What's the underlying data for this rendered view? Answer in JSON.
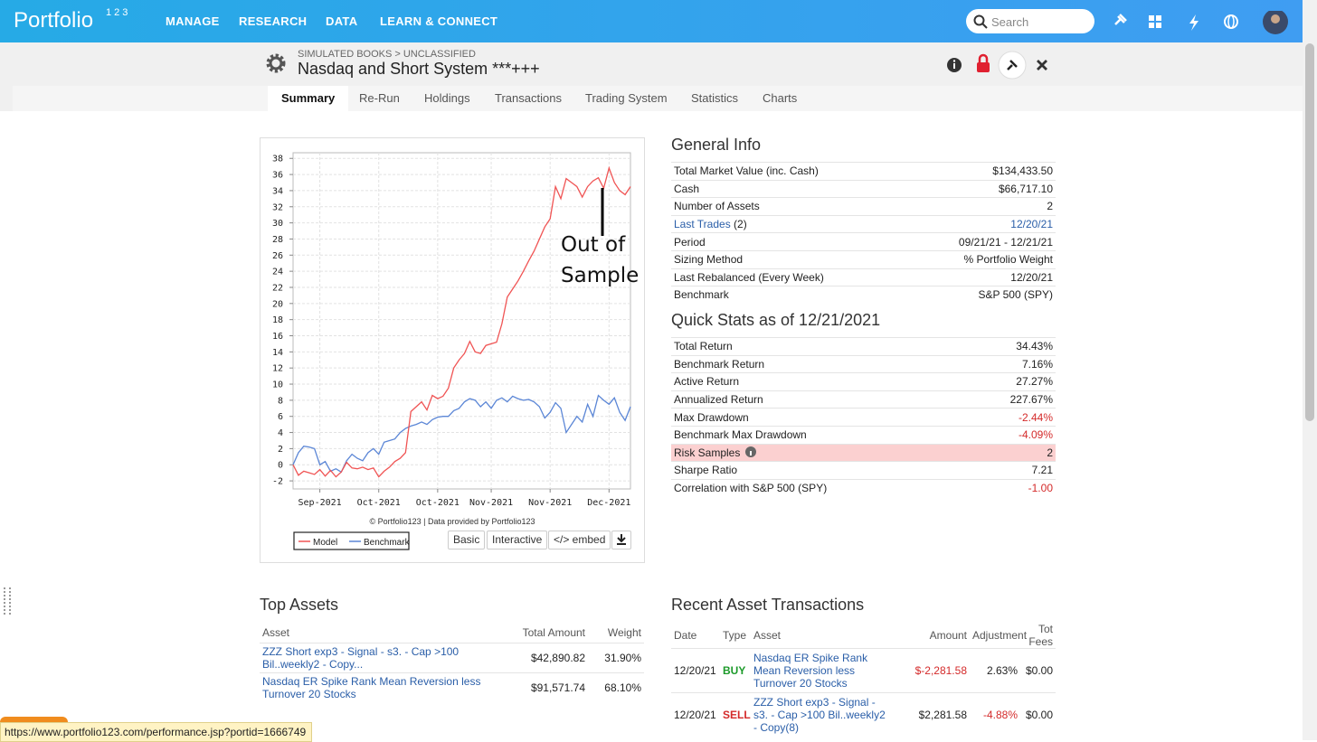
{
  "nav": {
    "logo": "Portfolio",
    "logo_mark": "123",
    "menu": [
      "MANAGE",
      "RESEARCH",
      "DATA",
      "LEARN & CONNECT"
    ],
    "search_placeholder": "Search"
  },
  "header": {
    "breadcrumb": "SIMULATED BOOKS > UNCLASSIFIED",
    "title": "Nasdaq and Short System ***+++"
  },
  "tabs": [
    "Summary",
    "Re-Run",
    "Holdings",
    "Transactions",
    "Trading System",
    "Statistics",
    "Charts"
  ],
  "chart_data": {
    "type": "line",
    "categories": [
      null,
      null,
      null,
      null,
      null,
      "Sep-2021",
      null,
      null,
      null,
      null,
      null,
      null,
      null,
      null,
      null,
      null,
      "Oct-2021",
      null,
      null,
      null,
      null,
      null,
      null,
      null,
      null,
      null,
      null,
      "Oct-2021",
      null,
      null,
      null,
      null,
      null,
      null,
      null,
      null,
      null,
      "Nov-2021",
      null,
      null,
      null,
      null,
      null,
      null,
      null,
      null,
      null,
      null,
      "Nov-2021",
      null,
      null,
      null,
      null,
      null,
      null,
      null,
      null,
      null,
      null,
      "Dec-2021",
      null,
      null,
      null,
      null
    ],
    "series": [
      {
        "name": "Model",
        "color": "#f05454",
        "values": [
          0,
          -1.3,
          -0.8,
          -1.0,
          -1.2,
          -0.6,
          -1.4,
          -0.7,
          -1.5,
          -0.9,
          0.3,
          -0.4,
          -0.5,
          -0.3,
          -0.6,
          -0.4,
          -1.5,
          -0.8,
          -0.3,
          0.4,
          0.8,
          1.5,
          6.6,
          7.2,
          7.8,
          6.8,
          8.6,
          8.2,
          8.5,
          9.5,
          12.0,
          13.0,
          13.8,
          15.3,
          14.0,
          13.8,
          14.8,
          15.0,
          15.2,
          17.5,
          20.8,
          21.8,
          22.8,
          24.0,
          25.3,
          26.5,
          28.0,
          29.5,
          30.5,
          34.5,
          33.0,
          35.5,
          35.0,
          34.5,
          33.2,
          34.5,
          35.2,
          35.6,
          34.3,
          36.8,
          35.0,
          34.0,
          33.5,
          34.5
        ]
      },
      {
        "name": "Benchmark",
        "color": "#5b86d6",
        "values": [
          0,
          1.5,
          2.3,
          2.2,
          2.0,
          0.0,
          0.4,
          -0.8,
          -0.5,
          -0.9,
          0.5,
          1.3,
          0.8,
          0.5,
          1.5,
          2.0,
          1.3,
          2.8,
          3.0,
          3.2,
          4.0,
          4.5,
          4.8,
          5.0,
          5.3,
          5.0,
          5.6,
          5.9,
          6.0,
          6.0,
          6.7,
          7.0,
          7.8,
          8.2,
          8.0,
          7.2,
          7.8,
          7.0,
          8.0,
          8.3,
          7.8,
          8.5,
          8.2,
          8.0,
          8.1,
          7.8,
          7.2,
          5.8,
          6.5,
          7.7,
          7.0,
          4.0,
          5.0,
          6.0,
          5.3,
          7.5,
          6.0,
          8.6,
          8.0,
          7.5,
          8.3,
          6.5,
          5.5,
          7.2
        ]
      }
    ],
    "ylim": [
      -3,
      38.7
    ],
    "yticks": [
      -2,
      0,
      2,
      4,
      6,
      8,
      10,
      12,
      14,
      16,
      18,
      20,
      22,
      24,
      26,
      28,
      30,
      32,
      34,
      36,
      38
    ],
    "grid": true,
    "annotation": [
      "Out of",
      "Sample"
    ],
    "credit": "© Portfolio123 | Data provided by Portfolio123"
  },
  "chart_controls": [
    "Basic",
    "Interactive",
    "</> embed"
  ],
  "general_info": {
    "title": "General Info",
    "rows": [
      {
        "label": "Total Market Value (inc. Cash)",
        "value": "$134,433.50"
      },
      {
        "label": "Cash",
        "value": "$66,717.10"
      },
      {
        "label": "Number of Assets",
        "value": "2"
      },
      {
        "label": "Last Trades",
        "note": "(2)",
        "value": "12/20/21"
      },
      {
        "label": "Period",
        "value": "09/21/21 - 12/21/21"
      },
      {
        "label": "Sizing Method",
        "value": "% Portfolio Weight"
      },
      {
        "label": "Last Rebalanced (Every Week)",
        "value": "12/20/21"
      },
      {
        "label": "Benchmark",
        "value": "S&P 500 (SPY)"
      }
    ]
  },
  "quick_stats": {
    "title": "Quick Stats as of 12/21/2021",
    "rows": [
      {
        "label": "Total Return",
        "value": "34.43%"
      },
      {
        "label": "Benchmark Return",
        "value": "7.16%"
      },
      {
        "label": "Active Return",
        "value": "27.27%"
      },
      {
        "label": "Annualized Return",
        "value": "227.67%"
      },
      {
        "label": "Max Drawdown",
        "value": "-2.44%"
      },
      {
        "label": "Benchmark Max Drawdown",
        "value": "-4.09%"
      },
      {
        "label": "Risk Samples",
        "value": "2"
      },
      {
        "label": "Sharpe Ratio",
        "value": "7.21"
      },
      {
        "label": "Correlation with S&P 500 (SPY)",
        "value": "-1.00"
      }
    ]
  },
  "top_assets": {
    "title": "Top Assets",
    "columns": [
      "Asset",
      "Total Amount",
      "Weight"
    ],
    "rows": [
      [
        "ZZZ Short exp3 - Signal - s3. - Cap >100 Bil..weekly2 - Copy...",
        "$42,890.82",
        "31.90%"
      ],
      [
        "Nasdaq ER Spike Rank Mean Reversion less Turnover 20 Stocks",
        "$91,571.74",
        "68.10%"
      ]
    ]
  },
  "recent_transactions": {
    "title": "Recent Asset Transactions",
    "columns": [
      "Date",
      "Type",
      "Asset",
      "Amount",
      "Adjustment",
      "Tot Fees"
    ],
    "rows": [
      [
        "12/20/21",
        "BUY",
        "Nasdaq ER Spike Rank Mean Reversion less Turnover 20 Stocks",
        "$-2,281.58",
        "2.63%",
        "$0.00"
      ],
      [
        "12/20/21",
        "SELL",
        "ZZZ Short exp3 - Signal - s3. - Cap >100 Bil..weekly2 - Copy(8)",
        "$2,281.58",
        "-4.88%",
        "$0.00"
      ]
    ]
  },
  "status_url": "https://www.portfolio123.com/performance.jsp?portid=1666749"
}
